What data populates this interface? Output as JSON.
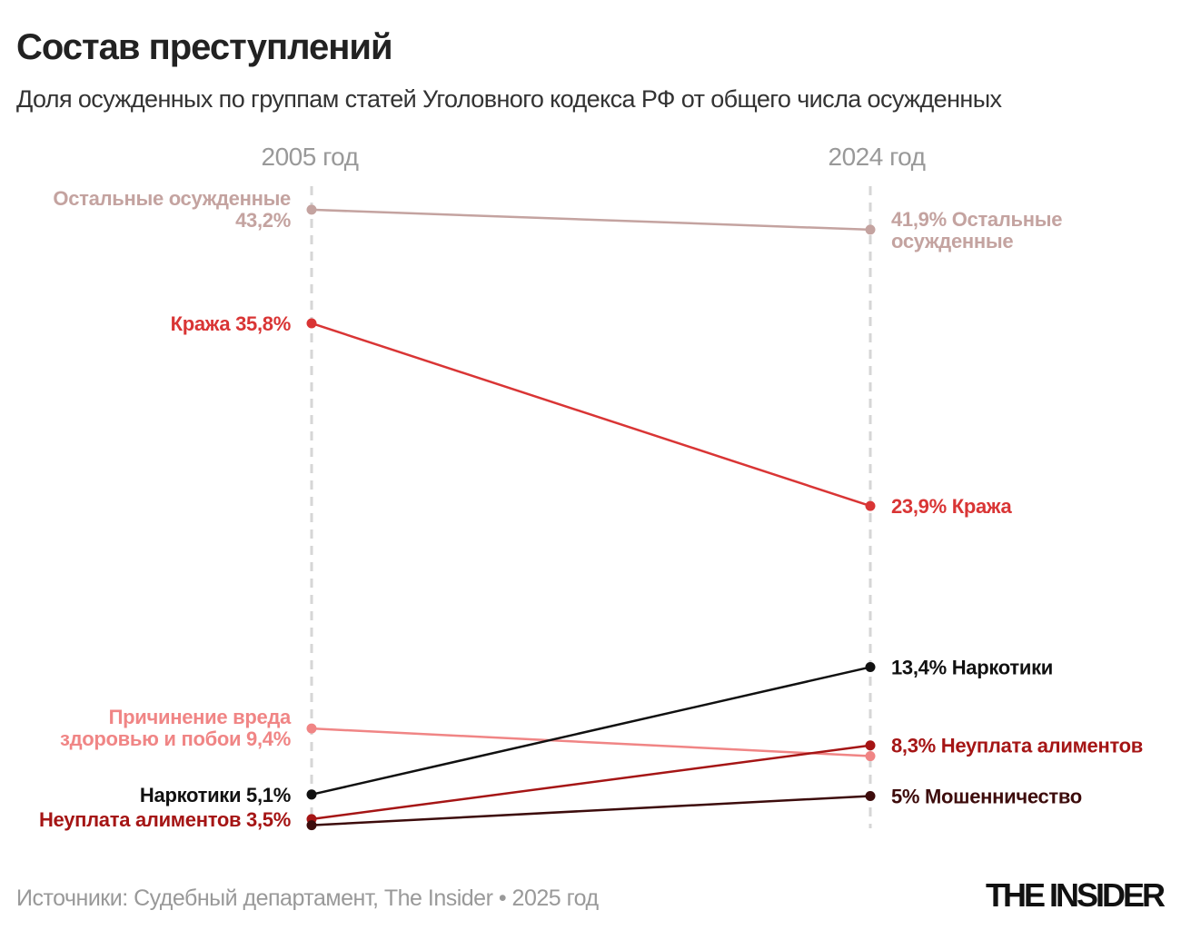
{
  "title": "Состав преступлений",
  "subtitle": "Доля осужденных по группам статей Уголовного кодекса РФ от общего числа осужденных",
  "footer": "Источники: Судебный департамент, The Insider • 2025 год",
  "logo": "THE INSIDER",
  "chart_data": {
    "type": "line",
    "subtype": "slope",
    "x": [
      "2005 год",
      "2024 год"
    ],
    "ylabel": "",
    "unit": "%",
    "grid": false,
    "series": [
      {
        "name": "Остальные осужденные",
        "values": [
          43.2,
          41.9
        ],
        "color": "#c4a3a0",
        "left_label": [
          "Остальные осужденные",
          "43,2%"
        ],
        "right_label": [
          "41,9% Остальные",
          "осужденные"
        ]
      },
      {
        "name": "Кража",
        "values": [
          35.8,
          23.9
        ],
        "color": "#d93535",
        "left_label": [
          "Кража 35,8%"
        ],
        "right_label": [
          "23,9% Кража"
        ]
      },
      {
        "name": "Причинение вреда здоровью и побои",
        "values": [
          9.4,
          7.6
        ],
        "color": "#f08585",
        "left_label": [
          "Причинение вреда",
          "здоровью и побои 9,4%"
        ],
        "right_label": []
      },
      {
        "name": "Наркотики",
        "values": [
          5.1,
          13.4
        ],
        "color": "#111111",
        "left_label": [
          "Наркотики 5,1%"
        ],
        "right_label": [
          "13,4% Наркотики"
        ]
      },
      {
        "name": "Неуплата алиментов",
        "values": [
          3.5,
          8.3
        ],
        "color": "#a51515",
        "left_label": [
          "Неуплата алиментов 3,5%"
        ],
        "right_label": [
          "8,3% Неуплата алиментов"
        ]
      },
      {
        "name": "Мошенничество",
        "values": [
          3.1,
          5.0
        ],
        "color": "#3d0c0c",
        "left_label": [],
        "right_label": [
          "5% Мошенничество"
        ]
      }
    ]
  }
}
